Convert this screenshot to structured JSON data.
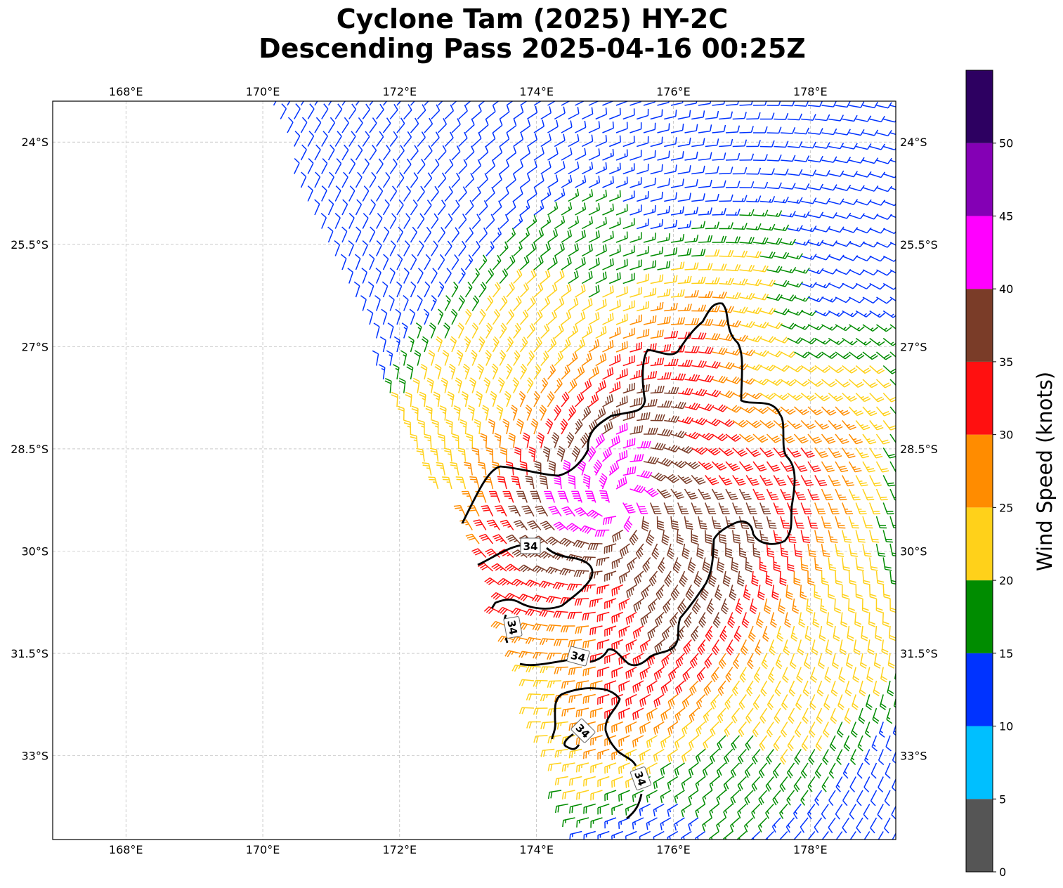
{
  "title": {
    "line1": "Cyclone Tam (2025) HY-2C",
    "line2": "Descending Pass 2025-04-16 00:25Z"
  },
  "map": {
    "projection": "PlateCarree",
    "lon_range": [
      166.93,
      179.25
    ],
    "lat_range": [
      -34.23,
      -23.4
    ],
    "lon_ticks": [
      {
        "value": 168,
        "label": "168°E"
      },
      {
        "value": 170,
        "label": "170°E"
      },
      {
        "value": 172,
        "label": "172°E"
      },
      {
        "value": 174,
        "label": "174°E"
      },
      {
        "value": 176,
        "label": "176°E"
      },
      {
        "value": 178,
        "label": "178°E"
      }
    ],
    "lat_ticks": [
      {
        "value": -24,
        "label": "24°S"
      },
      {
        "value": -25.5,
        "label": "25.5°S"
      },
      {
        "value": -27,
        "label": "27°S"
      },
      {
        "value": -28.5,
        "label": "28.5°S"
      },
      {
        "value": -30,
        "label": "30°S"
      },
      {
        "value": -31.5,
        "label": "31.5°S"
      },
      {
        "value": -33,
        "label": "33°S"
      }
    ],
    "gridlines": true
  },
  "colorbar": {
    "label": "Wind Speed (knots)",
    "bounds": [
      0,
      5,
      10,
      15,
      20,
      25,
      30,
      35,
      40,
      45,
      50,
      55
    ],
    "tick_labels": [
      "0",
      "5",
      "10",
      "15",
      "20",
      "25",
      "30",
      "35",
      "40",
      "45",
      "50"
    ],
    "colors": [
      "#555555",
      "#00bfff",
      "#0033ff",
      "#008c00",
      "#ffd11a",
      "#ff8c00",
      "#ff1010",
      "#7a3c28",
      "#ff00ff",
      "#8400b5",
      "#2d0061"
    ]
  },
  "contour": {
    "level": 34,
    "label": "34",
    "color": "#000000"
  },
  "wind_field": {
    "type": "wind barbs",
    "center": {
      "lon": 175.2,
      "lat": -29.3
    },
    "swath_edges": {
      "north_lat": -23.4,
      "west_lon_at_north": 170.0,
      "west_lon_at_south": 174.6,
      "south_lat": -34.2
    },
    "speed_classes_kt": [
      15,
      20,
      25,
      30,
      35,
      40
    ]
  }
}
